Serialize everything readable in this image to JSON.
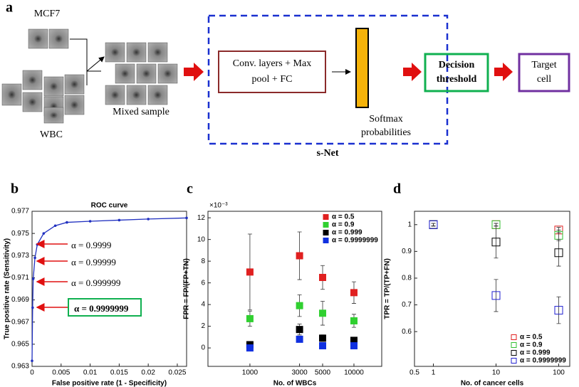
{
  "diagram": {
    "panel": "a",
    "mcf7_label": "MCF7",
    "wbc_label": "WBC",
    "mixed_label": "Mixed sample",
    "network_box": [
      "Conv. layers + Max",
      "pool + FC"
    ],
    "softmax_label": [
      "Softmax",
      "probabilities"
    ],
    "snet_label": "s-Net",
    "decision_box": [
      "Decision",
      "threshold"
    ],
    "target_box": [
      "Target",
      "cell"
    ]
  },
  "chart_data": [
    {
      "type": "line",
      "panel": "b",
      "title": "ROC curve",
      "x_label": "False positive rate (1 - Specificity)",
      "y_label": "True positive rate (Sensitivity)",
      "x": [
        0,
        0.0001,
        0.0002,
        0.0005,
        0.0009,
        0.002,
        0.004,
        0.006,
        0.01,
        0.015,
        0.02,
        0.0266
      ],
      "values": [
        0.9635,
        0.9683,
        0.9709,
        0.9728,
        0.974,
        0.975,
        0.9757,
        0.976,
        0.9761,
        0.9762,
        0.9763,
        0.9764
      ],
      "color": "#2030c0",
      "xlim": [
        0,
        0.0266
      ],
      "ylim": [
        0.963,
        0.977
      ],
      "xticks": [
        0,
        0.005,
        0.01,
        0.015,
        0.02,
        0.025
      ],
      "yticks": [
        0.963,
        0.965,
        0.967,
        0.969,
        0.971,
        0.973,
        0.975,
        0.977
      ],
      "annotations": [
        "α = 0.9999",
        "α = 0.99999",
        "α = 0.999999",
        "α = 0.9999999"
      ]
    },
    {
      "type": "scatter",
      "panel": "c",
      "x_label": "No. of WBCs",
      "y_label": "FPR = FP/(FP+TN)",
      "y_multiplier": "×10⁻³",
      "x": [
        1000,
        3000,
        5000,
        10000
      ],
      "xlog": true,
      "xlim": [
        395,
        18500
      ],
      "xticks": [
        1000,
        3000,
        5000,
        10000
      ],
      "ylim": [
        -1.7,
        12.6
      ],
      "yticks": [
        0,
        2,
        4,
        6,
        8,
        10,
        12
      ],
      "marker": "filled",
      "legend": "upper right",
      "series": [
        {
          "name": "α = 0.5",
          "color": "#e02020",
          "values": [
            7.0,
            8.5,
            6.5,
            5.1
          ],
          "errors": [
            3.5,
            2.2,
            1.1,
            1.0
          ]
        },
        {
          "name": "α = 0.9",
          "color": "#30d030",
          "values": [
            2.7,
            3.9,
            3.2,
            2.5
          ],
          "errors": [
            0.7,
            1.0,
            1.1,
            0.6
          ]
        },
        {
          "name": "α = 0.999",
          "color": "#000000",
          "values": [
            0.3,
            1.7,
            0.9,
            0.7
          ],
          "errors": [
            0.3,
            0.5,
            0.3,
            0.3
          ]
        },
        {
          "name": "α = 0.9999999",
          "color": "#1030e0",
          "values": [
            0.0,
            0.8,
            0.2,
            0.2
          ],
          "errors": [
            0.1,
            0.2,
            0.1,
            0.1
          ]
        }
      ]
    },
    {
      "type": "scatter",
      "panel": "d",
      "x_label": "No. of cancer cells",
      "y_label": "TPR = TP/(TP+FN)",
      "x": [
        1,
        10,
        100
      ],
      "xlog": true,
      "xlim": [
        0.5,
        150
      ],
      "xticks": [
        0.5,
        1,
        10,
        100
      ],
      "ylim": [
        0.47,
        1.05
      ],
      "yticks": [
        0.6,
        0.7,
        0.8,
        0.9,
        1
      ],
      "marker": "open",
      "legend": "lower right",
      "series": [
        {
          "name": "α = 0.5",
          "color": "#e02020",
          "values": [
            1.0,
            1.0,
            0.98
          ],
          "errors": [
            0.005,
            0.005,
            0.01
          ]
        },
        {
          "name": "α = 0.9",
          "color": "#30c030",
          "values": [
            1.0,
            1.0,
            0.96
          ],
          "errors": [
            0.005,
            0.005,
            0.02
          ]
        },
        {
          "name": "α = 0.999",
          "color": "#000000",
          "values": [
            1.0,
            0.935,
            0.895
          ],
          "errors": [
            0.005,
            0.06,
            0.05
          ]
        },
        {
          "name": "α = 0.9999999",
          "color": "#2020d0",
          "values": [
            1.0,
            0.735,
            0.68
          ],
          "errors": [
            0.005,
            0.06,
            0.05
          ]
        }
      ]
    }
  ]
}
